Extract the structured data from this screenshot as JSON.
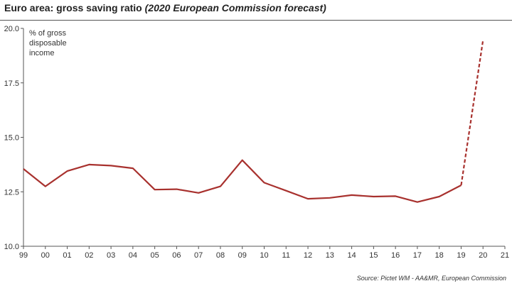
{
  "header": {
    "title": "Euro area: gross saving ratio",
    "subtitle": "(2020 European Commission forecast)"
  },
  "source": "Source: Pictet WM - AA&MR, European Commission",
  "colors": {
    "series": "#a8312e",
    "axis": "#555555",
    "text": "#333333"
  },
  "chart_data": {
    "type": "line",
    "title": "Euro area: gross saving ratio (2020 European Commission forecast)",
    "ylabel": "% of gross disposable income",
    "ylabel_lines": [
      "% of gross",
      "disposable",
      "income"
    ],
    "xlabel": "",
    "x": [
      "99",
      "00",
      "01",
      "02",
      "03",
      "04",
      "05",
      "06",
      "07",
      "08",
      "09",
      "10",
      "11",
      "12",
      "13",
      "14",
      "15",
      "16",
      "17",
      "18",
      "19",
      "20",
      "21"
    ],
    "ylim": [
      10.0,
      20.0
    ],
    "yticks": [
      "10.0",
      "12.5",
      "15.0",
      "17.5",
      "20.0"
    ],
    "grid": false,
    "legend": "none",
    "series": [
      {
        "style": "solid",
        "x": [
          "99",
          "00",
          "01",
          "02",
          "03",
          "04",
          "05",
          "06",
          "07",
          "08",
          "09",
          "10",
          "11",
          "12",
          "13",
          "14",
          "15",
          "16",
          "17",
          "18",
          "19"
        ],
        "values": [
          13.55,
          12.75,
          13.45,
          13.75,
          13.7,
          13.58,
          12.6,
          12.62,
          12.45,
          12.75,
          13.95,
          12.92,
          12.55,
          12.18,
          12.22,
          12.35,
          12.28,
          12.3,
          12.03,
          12.28,
          12.8
        ]
      },
      {
        "style": "dashed",
        "x": [
          "19",
          "20"
        ],
        "values": [
          12.8,
          19.45
        ]
      }
    ]
  }
}
